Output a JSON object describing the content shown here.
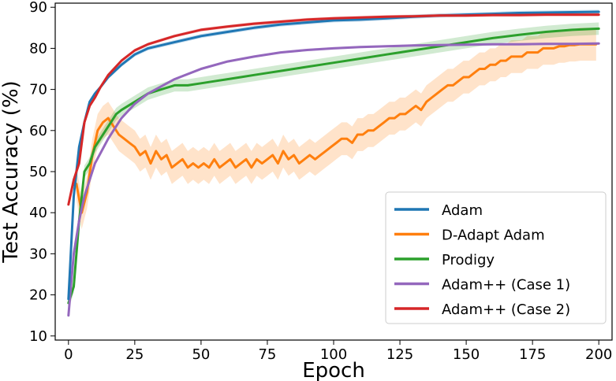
{
  "chart_data": {
    "type": "line",
    "title": "",
    "xlabel": "Epoch",
    "ylabel": "Test Accuracy (%)",
    "xlim": [
      -5,
      205
    ],
    "ylim": [
      9,
      91
    ],
    "x_ticks": [
      0,
      25,
      50,
      75,
      100,
      125,
      150,
      175,
      200
    ],
    "y_ticks": [
      10,
      20,
      30,
      40,
      50,
      60,
      70,
      80,
      90
    ],
    "grid": false,
    "legend_position": "lower-right",
    "series": [
      {
        "name": "Adam",
        "color": "#1f77b4",
        "band": 0.5,
        "x": [
          0,
          2,
          4,
          6,
          8,
          10,
          12,
          15,
          20,
          25,
          30,
          40,
          50,
          60,
          70,
          80,
          90,
          100,
          110,
          120,
          130,
          140,
          150,
          160,
          170,
          180,
          190,
          200
        ],
        "values": [
          19,
          44,
          56,
          62,
          67,
          69,
          70.5,
          73,
          76,
          78.5,
          80,
          81.5,
          83,
          84,
          85,
          85.8,
          86.3,
          86.8,
          87,
          87.3,
          87.7,
          88,
          88.2,
          88.4,
          88.6,
          88.7,
          88.8,
          88.9
        ]
      },
      {
        "name": "D-Adapt Adam",
        "color": "#ff7f0e",
        "band": 4,
        "x": [
          3,
          5,
          7,
          9,
          11,
          13,
          15,
          17,
          19,
          21,
          23,
          25,
          27,
          29,
          31,
          33,
          35,
          37,
          39,
          41,
          43,
          45,
          47,
          49,
          51,
          53,
          55,
          57,
          59,
          61,
          63,
          65,
          67,
          69,
          71,
          73,
          75,
          77,
          79,
          81,
          83,
          85,
          87,
          89,
          91,
          93,
          95,
          97,
          99,
          101,
          103,
          105,
          107,
          109,
          111,
          113,
          115,
          117,
          119,
          121,
          123,
          125,
          127,
          129,
          131,
          133,
          135,
          137,
          139,
          141,
          143,
          145,
          147,
          149,
          151,
          153,
          155,
          157,
          159,
          161,
          163,
          165,
          167,
          169,
          171,
          173,
          175,
          177,
          179,
          181,
          183,
          185,
          187,
          189,
          191,
          193,
          195,
          197,
          199
        ],
        "values": [
          47,
          40,
          45,
          54,
          60,
          62,
          63,
          61,
          59,
          58,
          57,
          56,
          54,
          55,
          52,
          55,
          53,
          54,
          51,
          52,
          53,
          51,
          52,
          51,
          52,
          51,
          53,
          51,
          52,
          53,
          51,
          52,
          53,
          51,
          53,
          52,
          53,
          54,
          52,
          55,
          53,
          54,
          52,
          53,
          54,
          53,
          54,
          55,
          56,
          57,
          58,
          58,
          57,
          59,
          59,
          60,
          60,
          61,
          62,
          63,
          63,
          64,
          64,
          65,
          66,
          65,
          67,
          68,
          69,
          70,
          71,
          71,
          72,
          73,
          73,
          74,
          75,
          75,
          76,
          76,
          77,
          77,
          78,
          78,
          78,
          79,
          79,
          79,
          80,
          80,
          80,
          80.5,
          80.5,
          80.8,
          80.8,
          81,
          81,
          81,
          81
        ]
      },
      {
        "name": "Prodigy",
        "color": "#2ca02c",
        "band": 1.5,
        "x": [
          0,
          2,
          4,
          6,
          8,
          10,
          12,
          14,
          16,
          18,
          20,
          25,
          30,
          35,
          40,
          45,
          50,
          55,
          60,
          65,
          70,
          75,
          80,
          85,
          90,
          95,
          100,
          110,
          120,
          130,
          140,
          150,
          160,
          170,
          180,
          190,
          200
        ],
        "values": [
          18,
          22,
          38,
          50,
          52,
          56,
          58,
          60,
          62,
          64,
          65,
          67,
          69,
          70,
          71,
          71,
          71.5,
          72,
          72.5,
          73,
          73.5,
          74,
          74.5,
          75,
          75.5,
          76,
          76.5,
          77.5,
          78.5,
          79.5,
          80.5,
          81.5,
          82.5,
          83.3,
          84,
          84.5,
          84.8
        ]
      },
      {
        "name": "Adam++ (Case 1)",
        "color": "#9467bd",
        "band": 0.3,
        "x": [
          0,
          2,
          4,
          6,
          8,
          10,
          15,
          20,
          25,
          30,
          40,
          50,
          60,
          70,
          80,
          90,
          100,
          110,
          120,
          130,
          140,
          150,
          160,
          170,
          180,
          190,
          200
        ],
        "values": [
          15,
          30,
          38,
          44,
          48,
          52,
          58,
          63,
          66.5,
          69,
          72.5,
          75,
          76.8,
          78,
          79,
          79.6,
          80,
          80.3,
          80.5,
          80.7,
          80.8,
          80.9,
          81,
          81,
          81.1,
          81.1,
          81.2
        ]
      },
      {
        "name": "Adam++ (Case 2)",
        "color": "#d62728",
        "band": 0.4,
        "x": [
          0,
          2,
          4,
          6,
          8,
          10,
          12,
          15,
          20,
          25,
          30,
          40,
          50,
          60,
          70,
          80,
          90,
          100,
          110,
          120,
          130,
          140,
          150,
          160,
          170,
          180,
          190,
          200
        ],
        "values": [
          42,
          48,
          52,
          62,
          66,
          68,
          70.5,
          73.5,
          77,
          79.5,
          81,
          83,
          84.5,
          85.3,
          86,
          86.5,
          87,
          87.3,
          87.5,
          87.7,
          87.8,
          88,
          88,
          88.1,
          88.1,
          88.2,
          88.2,
          88.2
        ]
      }
    ]
  }
}
